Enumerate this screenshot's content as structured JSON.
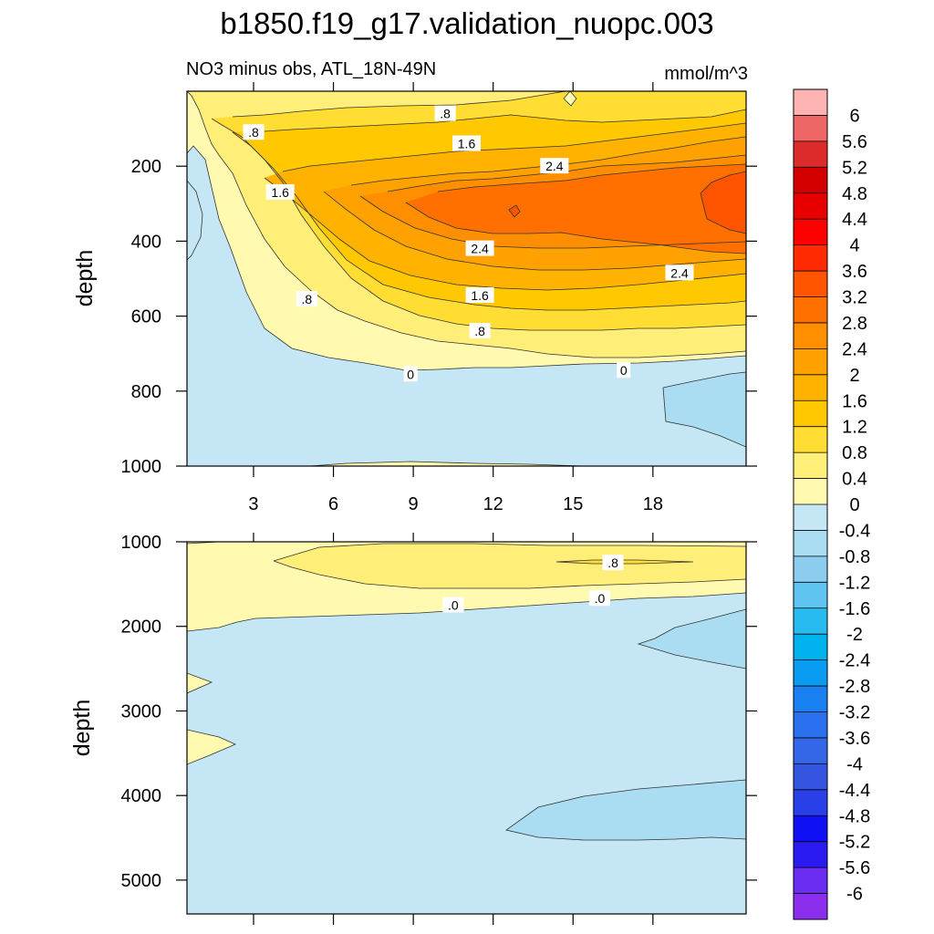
{
  "chart_data": [
    {
      "type": "contour",
      "panel": "upper",
      "title": "b1850.f19_g17.validation_nuopc.003",
      "subtitle": "NO3 minus obs, ATL_18N-49N",
      "units": "mmol/m^3",
      "xlabel": "",
      "ylabel": "depth",
      "xlim": [
        0.5,
        21.5
      ],
      "ylim": [
        1000,
        0
      ],
      "xticks": [
        3,
        6,
        9,
        12,
        15,
        18
      ],
      "yticks": [
        200,
        400,
        600,
        800,
        1000
      ],
      "contour_labels": [
        {
          "text": ".8",
          "x": 3.0,
          "y": 110
        },
        {
          "text": ".8",
          "x": 10.2,
          "y": 60
        },
        {
          "text": "1.6",
          "x": 4.0,
          "y": 270
        },
        {
          "text": "1.6",
          "x": 11.0,
          "y": 140
        },
        {
          "text": "2.4",
          "x": 14.3,
          "y": 200
        },
        {
          "text": "2.4",
          "x": 11.5,
          "y": 420
        },
        {
          "text": "2.4",
          "x": 19.0,
          "y": 485
        },
        {
          "text": "1.6",
          "x": 11.5,
          "y": 545
        },
        {
          "text": ".8",
          "x": 5.0,
          "y": 555
        },
        {
          "text": ".8",
          "x": 11.5,
          "y": 640
        },
        {
          "text": "0",
          "x": 8.9,
          "y": 755
        },
        {
          "text": "0",
          "x": 16.9,
          "y": 745
        }
      ]
    },
    {
      "type": "contour",
      "panel": "lower",
      "ylabel": "depth",
      "xlim": [
        0.5,
        21.5
      ],
      "ylim": [
        5400,
        1000
      ],
      "xticks": [
        3,
        6,
        9,
        12,
        15,
        18
      ],
      "yticks": [
        1000,
        2000,
        3000,
        4000,
        5000
      ],
      "contour_labels": [
        {
          "text": ".8",
          "x": 16.5,
          "y": 1250
        },
        {
          "text": ".0",
          "x": 10.5,
          "y": 1750
        },
        {
          "text": ".0",
          "x": 16.0,
          "y": 1670
        }
      ]
    }
  ],
  "colorbar": {
    "labels": [
      "6",
      "5.6",
      "5.2",
      "4.8",
      "4.4",
      "4",
      "3.6",
      "3.2",
      "2.8",
      "2.4",
      "2",
      "1.6",
      "1.2",
      "0.8",
      "0.4",
      "0",
      "-0.4",
      "-0.8",
      "-1.2",
      "-1.6",
      "-2",
      "-2.4",
      "-2.8",
      "-3.2",
      "-3.6",
      "-4",
      "-4.4",
      "-4.8",
      "-5.2",
      "-5.6",
      "-6"
    ],
    "colors": [
      "#FFB4B4",
      "#EE6666",
      "#DD2A2A",
      "#D40000",
      "#E80000",
      "#FF0000",
      "#FF2A00",
      "#FF5500",
      "#FF7000",
      "#FF8E00",
      "#FFA100",
      "#FFB300",
      "#FFC800",
      "#FFDD33",
      "#FFEE77",
      "#FFFAB0",
      "#C5E7F5",
      "#AADDF2",
      "#8CCDEF",
      "#5FC4EF",
      "#28BBEF",
      "#00B2EE",
      "#0A9CF0",
      "#1880F0",
      "#2870EE",
      "#3466E8",
      "#3355E0",
      "#2940E8",
      "#1010F5",
      "#2A1AF0",
      "#6A2CF0",
      "#8B2EEE"
    ]
  },
  "colors": {
    "level_neg": "#C5E7F5",
    "level_neg2": "#AADDF2",
    "level_0": "#FFFAB0",
    "level_04": "#FFEE77",
    "level_08": "#FFDD33",
    "level_12": "#FFC800",
    "level_16": "#FFB300",
    "level_20": "#FFA100",
    "level_24": "#FF8E00",
    "level_28": "#FF7000",
    "level_32": "#FF5500"
  }
}
